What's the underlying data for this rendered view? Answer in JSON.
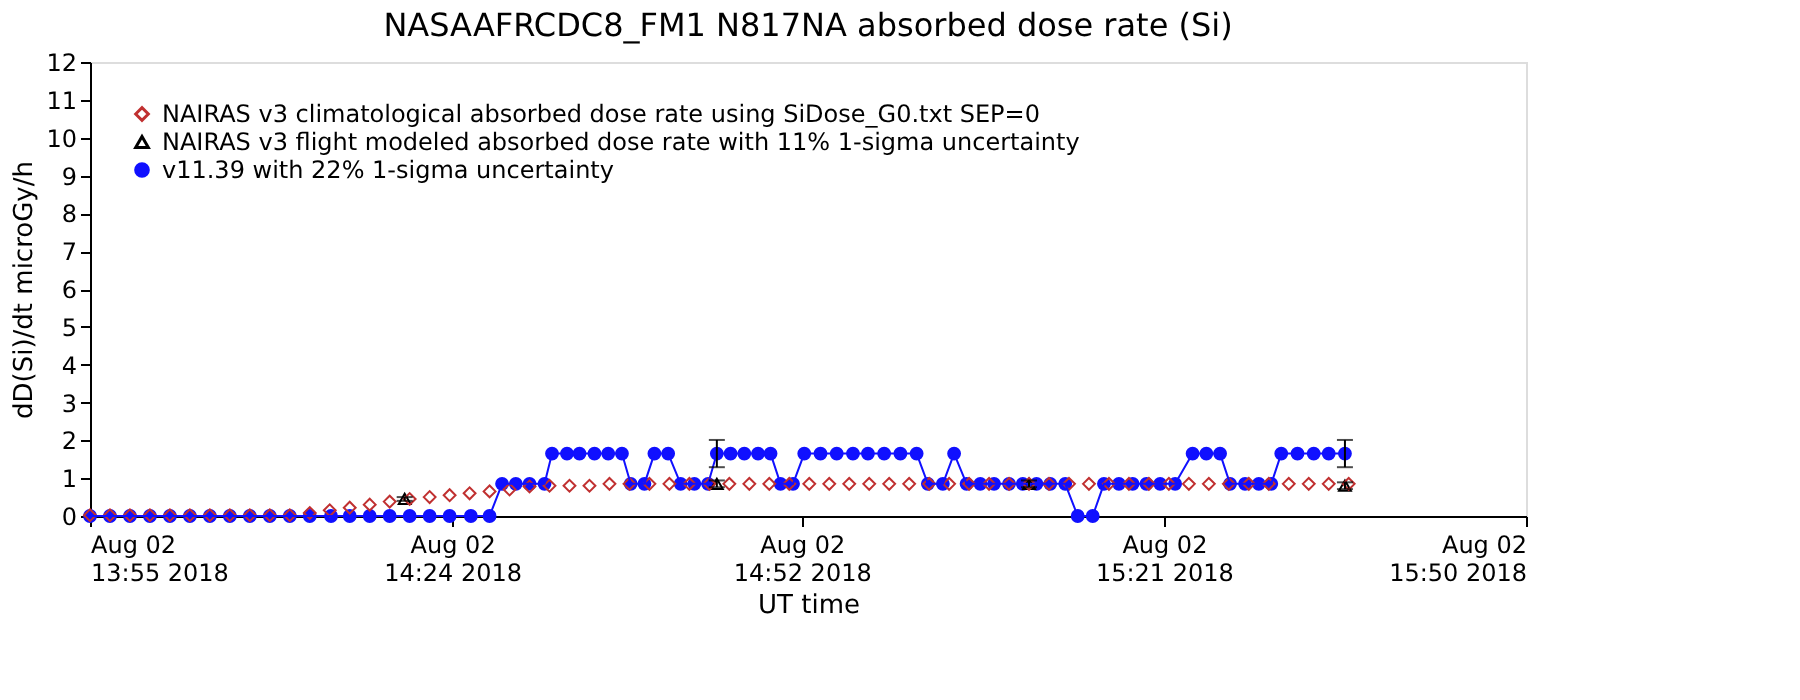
{
  "chart_data": {
    "type": "line",
    "title": "NASAAFRCDC8_FM1   N817NA absorbed dose rate (Si)",
    "xlabel": "UT time",
    "ylabel": "dD(Si)/dt microGy/h",
    "xlim": [
      "2018-08-02T13:55",
      "2018-08-02T15:50"
    ],
    "xticks": [
      {
        "value": "2018-08-02T13:55",
        "label": "Aug 02\n13:55 2018"
      },
      {
        "value": "2018-08-02T14:24",
        "label": "Aug 02\n14:24 2018"
      },
      {
        "value": "2018-08-02T14:52",
        "label": "Aug 02\n14:52 2018"
      },
      {
        "value": "2018-08-02T15:21",
        "label": "Aug 02\n15:21 2018"
      },
      {
        "value": "2018-08-02T15:50",
        "label": "Aug 02\n15:50 2018"
      }
    ],
    "ylim": [
      0,
      12
    ],
    "yticks": [
      0,
      1,
      2,
      3,
      4,
      5,
      6,
      7,
      8,
      9,
      10,
      11,
      12
    ],
    "legend": "top left",
    "series": [
      {
        "name": "NAIRAS v3 climatological absorbed dose rate using SiDose_G0.txt SEP=0",
        "type": "scatter",
        "marker": "diamond",
        "color": "#c03030",
        "x": [
          "2018-08-02T13:55:00",
          "2018-08-02T13:56:36",
          "2018-08-02T13:58:12",
          "2018-08-02T13:59:48",
          "2018-08-02T14:01:24",
          "2018-08-02T14:03:00",
          "2018-08-02T14:04:36",
          "2018-08-02T14:06:12",
          "2018-08-02T14:07:48",
          "2018-08-02T14:09:24",
          "2018-08-02T14:11:00",
          "2018-08-02T14:12:36",
          "2018-08-02T14:14:12",
          "2018-08-02T14:15:48",
          "2018-08-02T14:17:24",
          "2018-08-02T14:19:00",
          "2018-08-02T14:20:36",
          "2018-08-02T14:22:12",
          "2018-08-02T14:23:48",
          "2018-08-02T14:25:24",
          "2018-08-02T14:27:00",
          "2018-08-02T14:28:36",
          "2018-08-02T14:30:12",
          "2018-08-02T14:31:48",
          "2018-08-02T14:33:24",
          "2018-08-02T14:35:00",
          "2018-08-02T14:36:36",
          "2018-08-02T14:38:12",
          "2018-08-02T14:39:48",
          "2018-08-02T14:41:24",
          "2018-08-02T14:43:00",
          "2018-08-02T14:44:36",
          "2018-08-02T14:46:12",
          "2018-08-02T14:47:48",
          "2018-08-02T14:49:24",
          "2018-08-02T14:51:00",
          "2018-08-02T14:52:36",
          "2018-08-02T14:54:12",
          "2018-08-02T14:55:48",
          "2018-08-02T14:57:24",
          "2018-08-02T14:59:00",
          "2018-08-02T15:00:36",
          "2018-08-02T15:02:12",
          "2018-08-02T15:03:48",
          "2018-08-02T15:05:24",
          "2018-08-02T15:07:00",
          "2018-08-02T15:08:36",
          "2018-08-02T15:10:12",
          "2018-08-02T15:11:48",
          "2018-08-02T15:13:24",
          "2018-08-02T15:15:00",
          "2018-08-02T15:16:36",
          "2018-08-02T15:18:12",
          "2018-08-02T15:19:48",
          "2018-08-02T15:21:24",
          "2018-08-02T15:23:00",
          "2018-08-02T15:24:36",
          "2018-08-02T15:26:12",
          "2018-08-02T15:27:48",
          "2018-08-02T15:29:24",
          "2018-08-02T15:31:00",
          "2018-08-02T15:32:36",
          "2018-08-02T15:34:12",
          "2018-08-02T15:35:48"
        ],
        "values": [
          0.02,
          0.02,
          0.02,
          0.02,
          0.02,
          0.02,
          0.02,
          0.02,
          0.02,
          0.02,
          0.02,
          0.08,
          0.15,
          0.22,
          0.3,
          0.38,
          0.45,
          0.5,
          0.55,
          0.6,
          0.65,
          0.7,
          0.78,
          0.8,
          0.8,
          0.8,
          0.85,
          0.85,
          0.85,
          0.85,
          0.85,
          0.85,
          0.85,
          0.85,
          0.85,
          0.85,
          0.85,
          0.85,
          0.85,
          0.85,
          0.85,
          0.85,
          0.85,
          0.85,
          0.85,
          0.85,
          0.85,
          0.85,
          0.85,
          0.85,
          0.85,
          0.85,
          0.85,
          0.85,
          0.85,
          0.85,
          0.85,
          0.85,
          0.85,
          0.85,
          0.85,
          0.85,
          0.85,
          0.85
        ]
      },
      {
        "name": "NAIRAS v3 flight modeled absorbed dose rate with 11% 1-sigma uncertainty",
        "type": "scatter",
        "marker": "triangle",
        "color": "#000000",
        "x": [
          "2018-08-02T14:20:12",
          "2018-08-02T14:45:12",
          "2018-08-02T15:10:12",
          "2018-08-02T15:35:30"
        ],
        "values": [
          0.45,
          0.85,
          0.85,
          0.8
        ],
        "errors": [
          0.05,
          0.09,
          0.09,
          0.09
        ]
      },
      {
        "name": "v11.39 with 22% 1-sigma uncertainty",
        "marker": "circle",
        "color": "#1010ff",
        "x": [
          "2018-08-02T13:55:00",
          "2018-08-02T13:56:36",
          "2018-08-02T13:58:12",
          "2018-08-02T13:59:48",
          "2018-08-02T14:01:24",
          "2018-08-02T14:03:00",
          "2018-08-02T14:04:36",
          "2018-08-02T14:06:12",
          "2018-08-02T14:07:48",
          "2018-08-02T14:09:24",
          "2018-08-02T14:11:00",
          "2018-08-02T14:12:36",
          "2018-08-02T14:14:18",
          "2018-08-02T14:15:48",
          "2018-08-02T14:17:24",
          "2018-08-02T14:19:00",
          "2018-08-02T14:20:36",
          "2018-08-02T14:22:12",
          "2018-08-02T14:23:48",
          "2018-08-02T14:25:30",
          "2018-08-02T14:27:00",
          "2018-08-02T14:28:00",
          "2018-08-02T14:29:06",
          "2018-08-02T14:30:12",
          "2018-08-02T14:31:24",
          "2018-08-02T14:32:00",
          "2018-08-02T14:33:12",
          "2018-08-02T14:34:12",
          "2018-08-02T14:35:24",
          "2018-08-02T14:36:30",
          "2018-08-02T14:37:36",
          "2018-08-02T14:38:18",
          "2018-08-02T14:39:24",
          "2018-08-02T14:40:12",
          "2018-08-02T14:41:18",
          "2018-08-02T14:42:18",
          "2018-08-02T14:43:24",
          "2018-08-02T14:44:30",
          "2018-08-02T14:45:12",
          "2018-08-02T14:46:18",
          "2018-08-02T14:47:24",
          "2018-08-02T14:48:30",
          "2018-08-02T14:49:30",
          "2018-08-02T14:50:18",
          "2018-08-02T14:51:18",
          "2018-08-02T14:52:12",
          "2018-08-02T14:53:30",
          "2018-08-02T14:54:48",
          "2018-08-02T14:56:06",
          "2018-08-02T14:57:18",
          "2018-08-02T14:58:36",
          "2018-08-02T14:59:54",
          "2018-08-02T15:01:12",
          "2018-08-02T15:02:06",
          "2018-08-02T15:03:18",
          "2018-08-02T15:04:12",
          "2018-08-02T15:05:12",
          "2018-08-02T15:06:18",
          "2018-08-02T15:07:24",
          "2018-08-02T15:08:36",
          "2018-08-02T15:09:42",
          "2018-08-02T15:10:48",
          "2018-08-02T15:11:54",
          "2018-08-02T15:13:06",
          "2018-08-02T15:14:06",
          "2018-08-02T15:15:18",
          "2018-08-02T15:16:12",
          "2018-08-02T15:17:24",
          "2018-08-02T15:18:30",
          "2018-08-02T15:19:36",
          "2018-08-02T15:20:42",
          "2018-08-02T15:21:54",
          "2018-08-02T15:23:18",
          "2018-08-02T15:24:24",
          "2018-08-02T15:25:30",
          "2018-08-02T15:26:18",
          "2018-08-02T15:27:30",
          "2018-08-02T15:28:36",
          "2018-08-02T15:29:36",
          "2018-08-02T15:30:24",
          "2018-08-02T15:31:42",
          "2018-08-02T15:33:00",
          "2018-08-02T15:34:12",
          "2018-08-02T15:35:30"
        ],
        "values": [
          0,
          0,
          0,
          0,
          0,
          0,
          0,
          0,
          0,
          0,
          0,
          0,
          0,
          0,
          0,
          0,
          0,
          0,
          0,
          0,
          0,
          0.85,
          0.85,
          0.85,
          0.85,
          1.65,
          1.65,
          1.65,
          1.65,
          1.65,
          1.65,
          0.85,
          0.85,
          1.65,
          1.65,
          0.85,
          0.85,
          0.85,
          1.65,
          1.65,
          1.65,
          1.65,
          1.65,
          0.85,
          0.85,
          1.65,
          1.65,
          1.65,
          1.65,
          1.65,
          1.65,
          1.65,
          1.65,
          0.85,
          0.85,
          1.65,
          0.85,
          0.85,
          0.85,
          0.85,
          0.85,
          0.85,
          0.85,
          0.85,
          0,
          0,
          0.85,
          0.85,
          0.85,
          0.85,
          0.85,
          0.85,
          1.65,
          1.65,
          1.65,
          0.85,
          0.85,
          0.85,
          0.85,
          1.65,
          1.65,
          1.65,
          1.65,
          1.65
        ],
        "errors": [
          null,
          null,
          null,
          null,
          null,
          null,
          null,
          null,
          null,
          null,
          null,
          null,
          null,
          null,
          null,
          null,
          null,
          null,
          null,
          null,
          null,
          null,
          null,
          null,
          null,
          null,
          null,
          null,
          null,
          null,
          null,
          null,
          null,
          null,
          null,
          null,
          null,
          null,
          0.36,
          null,
          null,
          null,
          null,
          null,
          null,
          null,
          null,
          null,
          null,
          null,
          null,
          null,
          null,
          null,
          null,
          null,
          null,
          null,
          null,
          null,
          null,
          null,
          null,
          null,
          null,
          null,
          null,
          null,
          null,
          null,
          null,
          null,
          null,
          null,
          null,
          null,
          null,
          null,
          null,
          null,
          null,
          null,
          null,
          0.36
        ]
      }
    ]
  }
}
